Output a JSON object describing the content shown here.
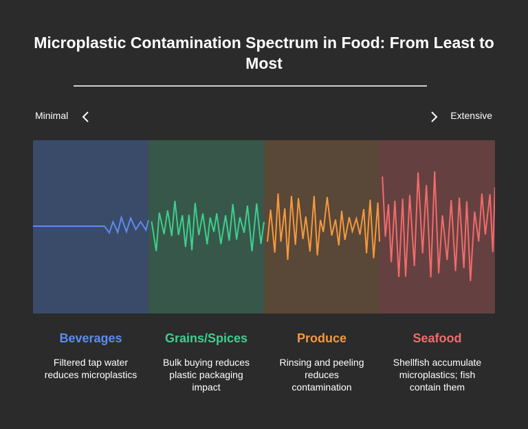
{
  "title": "Microplastic Contamination Spectrum in Food: From Least to Most",
  "scale": {
    "min_label": "Minimal",
    "max_label": "Extensive"
  },
  "icons": {
    "left": "chevron-left-icon",
    "right": "chevron-right-icon"
  },
  "categories": [
    {
      "name": "Beverages",
      "description": "Filtered tap water reduces microplastics",
      "color": "#5b8def",
      "band_color": "#3a4a69"
    },
    {
      "name": "Grains/Spices",
      "description": "Bulk buying reduces plastic packaging impact",
      "color": "#3ecf8e",
      "band_color": "#37574a"
    },
    {
      "name": "Produce",
      "description": "Rinsing and peeling reduces contamination",
      "color": "#f5993d",
      "band_color": "#594737"
    },
    {
      "name": "Seafood",
      "description": "Shellfish accumulate microplastics; fish contain them",
      "color": "#f26b6b",
      "band_color": "#654040"
    }
  ]
}
